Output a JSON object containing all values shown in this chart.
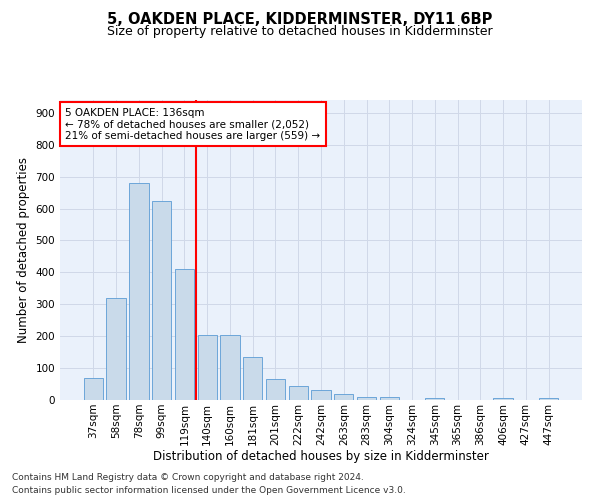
{
  "title": "5, OAKDEN PLACE, KIDDERMINSTER, DY11 6BP",
  "subtitle": "Size of property relative to detached houses in Kidderminster",
  "xlabel": "Distribution of detached houses by size in Kidderminster",
  "ylabel": "Number of detached properties",
  "footnote1": "Contains HM Land Registry data © Crown copyright and database right 2024.",
  "footnote2": "Contains public sector information licensed under the Open Government Licence v3.0.",
  "categories": [
    "37sqm",
    "58sqm",
    "78sqm",
    "99sqm",
    "119sqm",
    "140sqm",
    "160sqm",
    "181sqm",
    "201sqm",
    "222sqm",
    "242sqm",
    "263sqm",
    "283sqm",
    "304sqm",
    "324sqm",
    "345sqm",
    "365sqm",
    "386sqm",
    "406sqm",
    "427sqm",
    "447sqm"
  ],
  "values": [
    70,
    320,
    680,
    625,
    410,
    205,
    205,
    135,
    65,
    45,
    30,
    20,
    10,
    10,
    0,
    5,
    0,
    0,
    5,
    0,
    5
  ],
  "bar_color": "#c9daea",
  "bar_edge_color": "#5b9bd5",
  "vline_x": 4.5,
  "vline_color": "red",
  "annotation_text": "5 OAKDEN PLACE: 136sqm\n← 78% of detached houses are smaller (2,052)\n21% of semi-detached houses are larger (559) →",
  "annotation_box_color": "white",
  "annotation_box_edge_color": "red",
  "ylim": [
    0,
    940
  ],
  "yticks": [
    0,
    100,
    200,
    300,
    400,
    500,
    600,
    700,
    800,
    900
  ],
  "grid_color": "#d0d8e8",
  "bg_color": "#eaf1fb",
  "title_fontsize": 10.5,
  "subtitle_fontsize": 9,
  "tick_fontsize": 7.5,
  "label_fontsize": 8.5,
  "annotation_fontsize": 7.5,
  "footnote_fontsize": 6.5
}
